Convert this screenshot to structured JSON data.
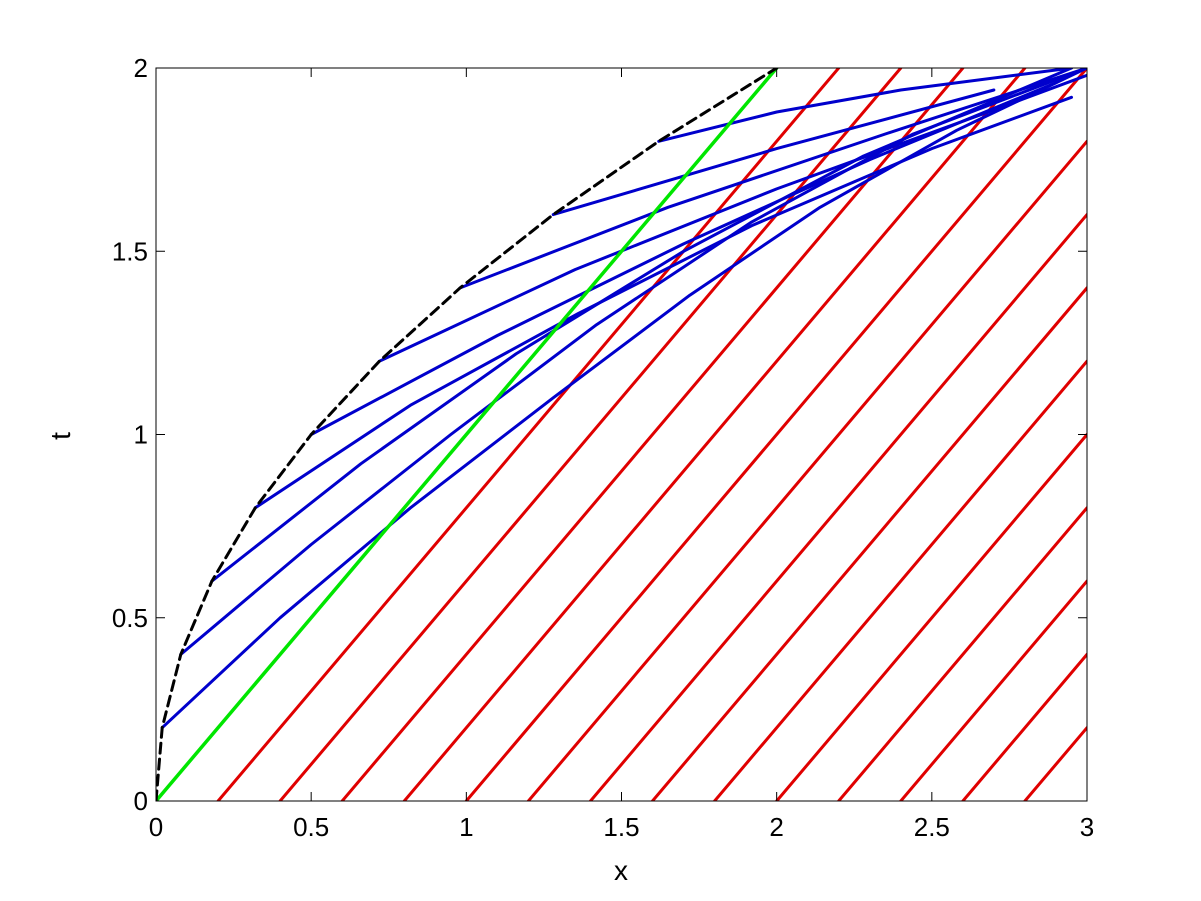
{
  "chart_data": {
    "type": "line",
    "title": "",
    "xlabel": "x",
    "ylabel": "t",
    "xlim": [
      0,
      3
    ],
    "ylim": [
      0,
      2
    ],
    "xticks": [
      0,
      0.5,
      1,
      1.5,
      2,
      2.5,
      3
    ],
    "xtick_labels": [
      "0",
      "0.5",
      "1",
      "1.5",
      "2",
      "2.5",
      "3"
    ],
    "yticks": [
      0,
      0.5,
      1,
      1.5,
      2
    ],
    "ytick_labels": [
      "0",
      "0.5",
      "1",
      "1.5",
      "2"
    ],
    "grid": false,
    "legend": "none",
    "colors": {
      "boundary": "#000000",
      "green": "#00e600",
      "blue": "#0000cc",
      "red": "#e00000",
      "axes": "#000000"
    },
    "boundary_curve": {
      "style": "dashed",
      "x": [
        0,
        0.02,
        0.08,
        0.18,
        0.32,
        0.5,
        0.72,
        0.98,
        1.28,
        1.62,
        2.0
      ],
      "t": [
        0,
        0.2,
        0.4,
        0.6,
        0.8,
        1.0,
        1.2,
        1.4,
        1.6,
        1.8,
        2.0
      ]
    },
    "green_line": {
      "x": [
        0,
        2.0
      ],
      "t": [
        0,
        2.0
      ]
    },
    "blue_lines": [
      {
        "x": [
          0.02,
          0.4,
          0.82,
          1.28,
          1.72,
          2.14,
          2.58,
          3.0
        ],
        "t": [
          0.2,
          0.5,
          0.8,
          1.1,
          1.38,
          1.62,
          1.83,
          2.0
        ]
      },
      {
        "x": [
          0.08,
          0.5,
          0.95,
          1.42,
          1.92,
          2.44,
          3.0
        ],
        "t": [
          0.4,
          0.7,
          1.0,
          1.3,
          1.58,
          1.82,
          2.0
        ]
      },
      {
        "x": [
          0.18,
          0.66,
          1.16,
          1.7,
          2.28,
          2.95
        ],
        "t": [
          0.6,
          0.92,
          1.22,
          1.5,
          1.76,
          2.0
        ]
      },
      {
        "x": [
          0.32,
          0.82,
          1.36,
          1.92,
          2.5,
          2.95
        ],
        "t": [
          0.8,
          1.08,
          1.33,
          1.57,
          1.78,
          1.92
        ]
      },
      {
        "x": [
          0.5,
          1.1,
          1.7,
          2.3,
          2.9
        ],
        "t": [
          1.0,
          1.27,
          1.52,
          1.75,
          1.96
        ]
      },
      {
        "x": [
          0.72,
          1.35,
          2.0,
          2.65,
          3.0
        ],
        "t": [
          1.2,
          1.45,
          1.67,
          1.87,
          1.98
        ]
      },
      {
        "x": [
          0.98,
          1.65,
          2.35,
          3.0
        ],
        "t": [
          1.4,
          1.62,
          1.82,
          2.0
        ]
      },
      {
        "x": [
          1.28,
          2.0,
          2.7
        ],
        "t": [
          1.6,
          1.78,
          1.94
        ]
      },
      {
        "x": [
          1.62,
          2.0,
          2.4,
          2.95
        ],
        "t": [
          1.8,
          1.88,
          1.94,
          2.0
        ]
      }
    ],
    "red_lines": [
      {
        "x": [
          0.2,
          2.2
        ],
        "t": [
          0,
          2
        ]
      },
      {
        "x": [
          0.4,
          2.4
        ],
        "t": [
          0,
          2
        ]
      },
      {
        "x": [
          0.6,
          2.6
        ],
        "t": [
          0,
          2
        ]
      },
      {
        "x": [
          0.8,
          2.8
        ],
        "t": [
          0,
          2
        ]
      },
      {
        "x": [
          1.0,
          3.0
        ],
        "t": [
          0,
          2
        ]
      },
      {
        "x": [
          1.2,
          3.0
        ],
        "t": [
          0,
          1.8
        ]
      },
      {
        "x": [
          1.4,
          3.0
        ],
        "t": [
          0,
          1.6
        ]
      },
      {
        "x": [
          1.6,
          3.0
        ],
        "t": [
          0,
          1.4
        ]
      },
      {
        "x": [
          1.8,
          3.0
        ],
        "t": [
          0,
          1.2
        ]
      },
      {
        "x": [
          2.0,
          3.0
        ],
        "t": [
          0,
          1.0
        ]
      },
      {
        "x": [
          2.2,
          3.0
        ],
        "t": [
          0,
          0.8
        ]
      },
      {
        "x": [
          2.4,
          3.0
        ],
        "t": [
          0,
          0.6
        ]
      },
      {
        "x": [
          2.6,
          3.0
        ],
        "t": [
          0,
          0.4
        ]
      },
      {
        "x": [
          2.8,
          3.0
        ],
        "t": [
          0,
          0.2
        ]
      }
    ]
  }
}
